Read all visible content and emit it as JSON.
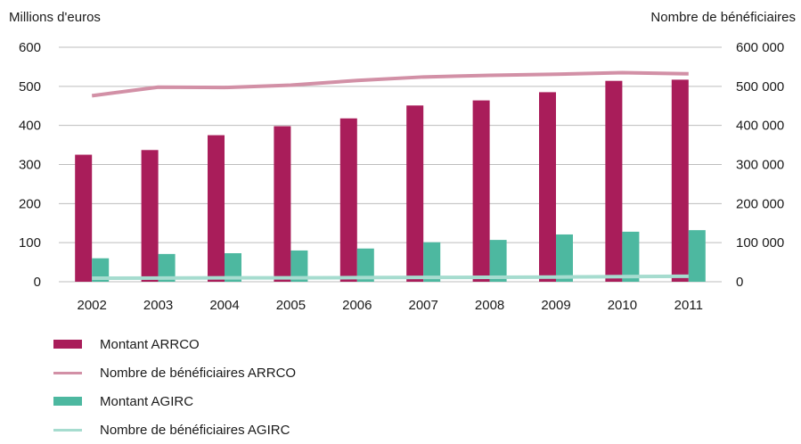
{
  "chart_data": {
    "type": "bar",
    "title": "",
    "ylabel_left": "Millions d'euros",
    "ylabel_right": "Nombre de bénéficiaires",
    "categories": [
      "2002",
      "2003",
      "2004",
      "2005",
      "2006",
      "2007",
      "2008",
      "2009",
      "2010",
      "2011"
    ],
    "y_left": {
      "min": 0,
      "max": 600,
      "ticks": [
        "0",
        "100",
        "200",
        "300",
        "400",
        "500",
        "600"
      ]
    },
    "y_right": {
      "min": 0,
      "max": 600000,
      "ticks": [
        "0",
        "100 000",
        "200 000",
        "300 000",
        "400 000",
        "500 000",
        "600 000"
      ]
    },
    "grid": true,
    "legend_position": "bottom-left",
    "series": [
      {
        "name": "Montant ARRCO",
        "kind": "bar",
        "axis": "left",
        "color": "#A91D5A",
        "values": [
          325,
          337,
          375,
          398,
          418,
          451,
          464,
          485,
          514,
          517
        ]
      },
      {
        "name": "Nombre de bénéficiaires ARRCO",
        "kind": "line",
        "axis": "right",
        "color": "#D290A6",
        "values": [
          476000,
          498000,
          497000,
          503000,
          515000,
          524000,
          528000,
          531000,
          535000,
          532000
        ]
      },
      {
        "name": "Montant AGIRC",
        "kind": "bar",
        "axis": "left",
        "color": "#4DB8A0",
        "values": [
          60,
          71,
          73,
          80,
          85,
          101,
          107,
          121,
          128,
          132
        ]
      },
      {
        "name": "Nombre de bénéficiaires AGIRC",
        "kind": "line",
        "axis": "right",
        "color": "#A6DCCF",
        "values": [
          9000,
          9500,
          10000,
          10000,
          10500,
          11000,
          11500,
          12000,
          13000,
          14000
        ]
      }
    ]
  }
}
